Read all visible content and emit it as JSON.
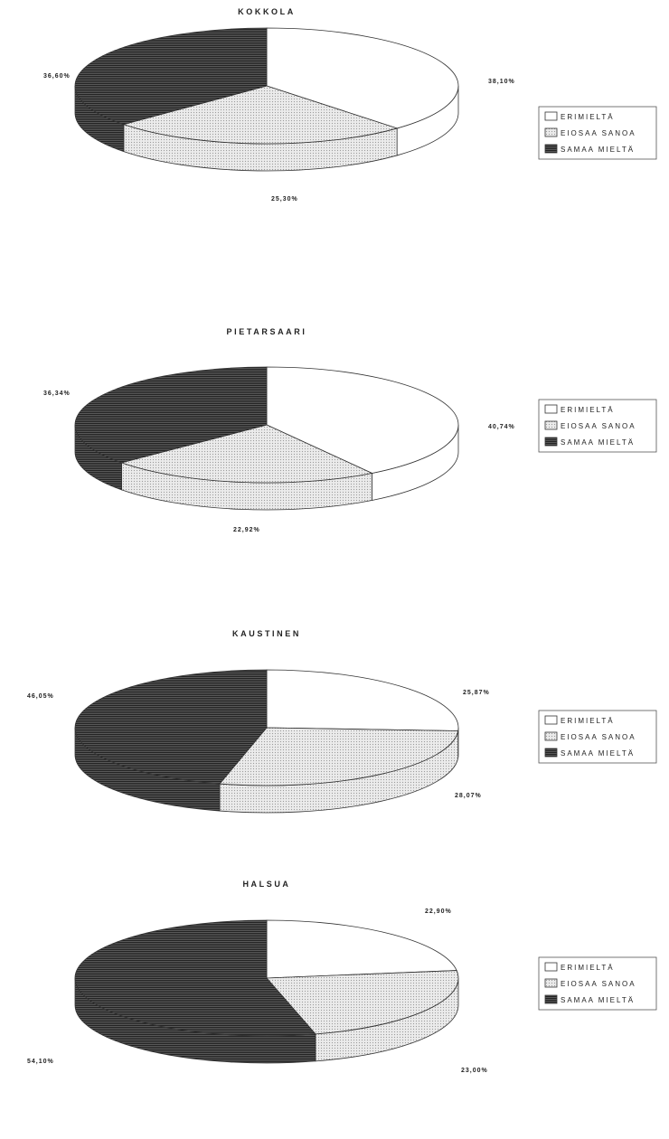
{
  "chart_data": [
    {
      "type": "pie",
      "title": "KOKKOLA",
      "categories": [
        "ERIMIELTÄ",
        "EIOSAA SANOA",
        "SAMAA MIELTÄ"
      ],
      "values": [
        38.1,
        25.3,
        36.6
      ],
      "value_labels": [
        "38,10%",
        "25,30%",
        "36,60%"
      ],
      "legend": [
        "ERIMIELTÄ",
        "EIOSAA SANOA",
        "SAMAA MIELTÄ"
      ],
      "legend_placement": "right"
    },
    {
      "type": "pie",
      "title": "PIETARSAARI",
      "categories": [
        "ERIMIELTÄ",
        "EIOSAA SANOA",
        "SAMAA MIELTÄ"
      ],
      "values": [
        40.74,
        22.92,
        36.34
      ],
      "value_labels": [
        "40,74%",
        "22,92%",
        "36,34%"
      ],
      "legend": [
        "ERIMIELTÄ",
        "EIOSAA SANOA",
        "SAMAA MIELTÄ"
      ],
      "legend_placement": "right"
    },
    {
      "type": "pie",
      "title": "KAUSTINEN",
      "categories": [
        "ERIMIELTÄ",
        "EIOSAA SANOA",
        "SAMAA MIELTÄ"
      ],
      "values": [
        25.87,
        28.07,
        46.05
      ],
      "value_labels": [
        "25,87%",
        "28,07%",
        "46,05%"
      ],
      "legend": [
        "ERIMIELTÄ",
        "EIOSAA SANOA",
        "SAMAA MIELTÄ"
      ],
      "legend_placement": "right"
    },
    {
      "type": "pie",
      "title": "HALSUA",
      "categories": [
        "ERIMIELTÄ",
        "EIOSAA SANOA",
        "SAMAA MIELTÄ"
      ],
      "values": [
        22.9,
        23.0,
        54.1
      ],
      "value_labels": [
        "22,90%",
        "23,00%",
        "54,10%"
      ],
      "legend": [
        "ERIMIELTÄ",
        "EIOSAA SANOA",
        "SAMAA MIELTÄ"
      ],
      "legend_placement": "right"
    }
  ],
  "colors": {
    "erimielta": "#ffffff",
    "eiosaa_sanoa": "#e2e2e2",
    "samaa_mielta": "#4a4a4a",
    "stroke": "#333333"
  }
}
